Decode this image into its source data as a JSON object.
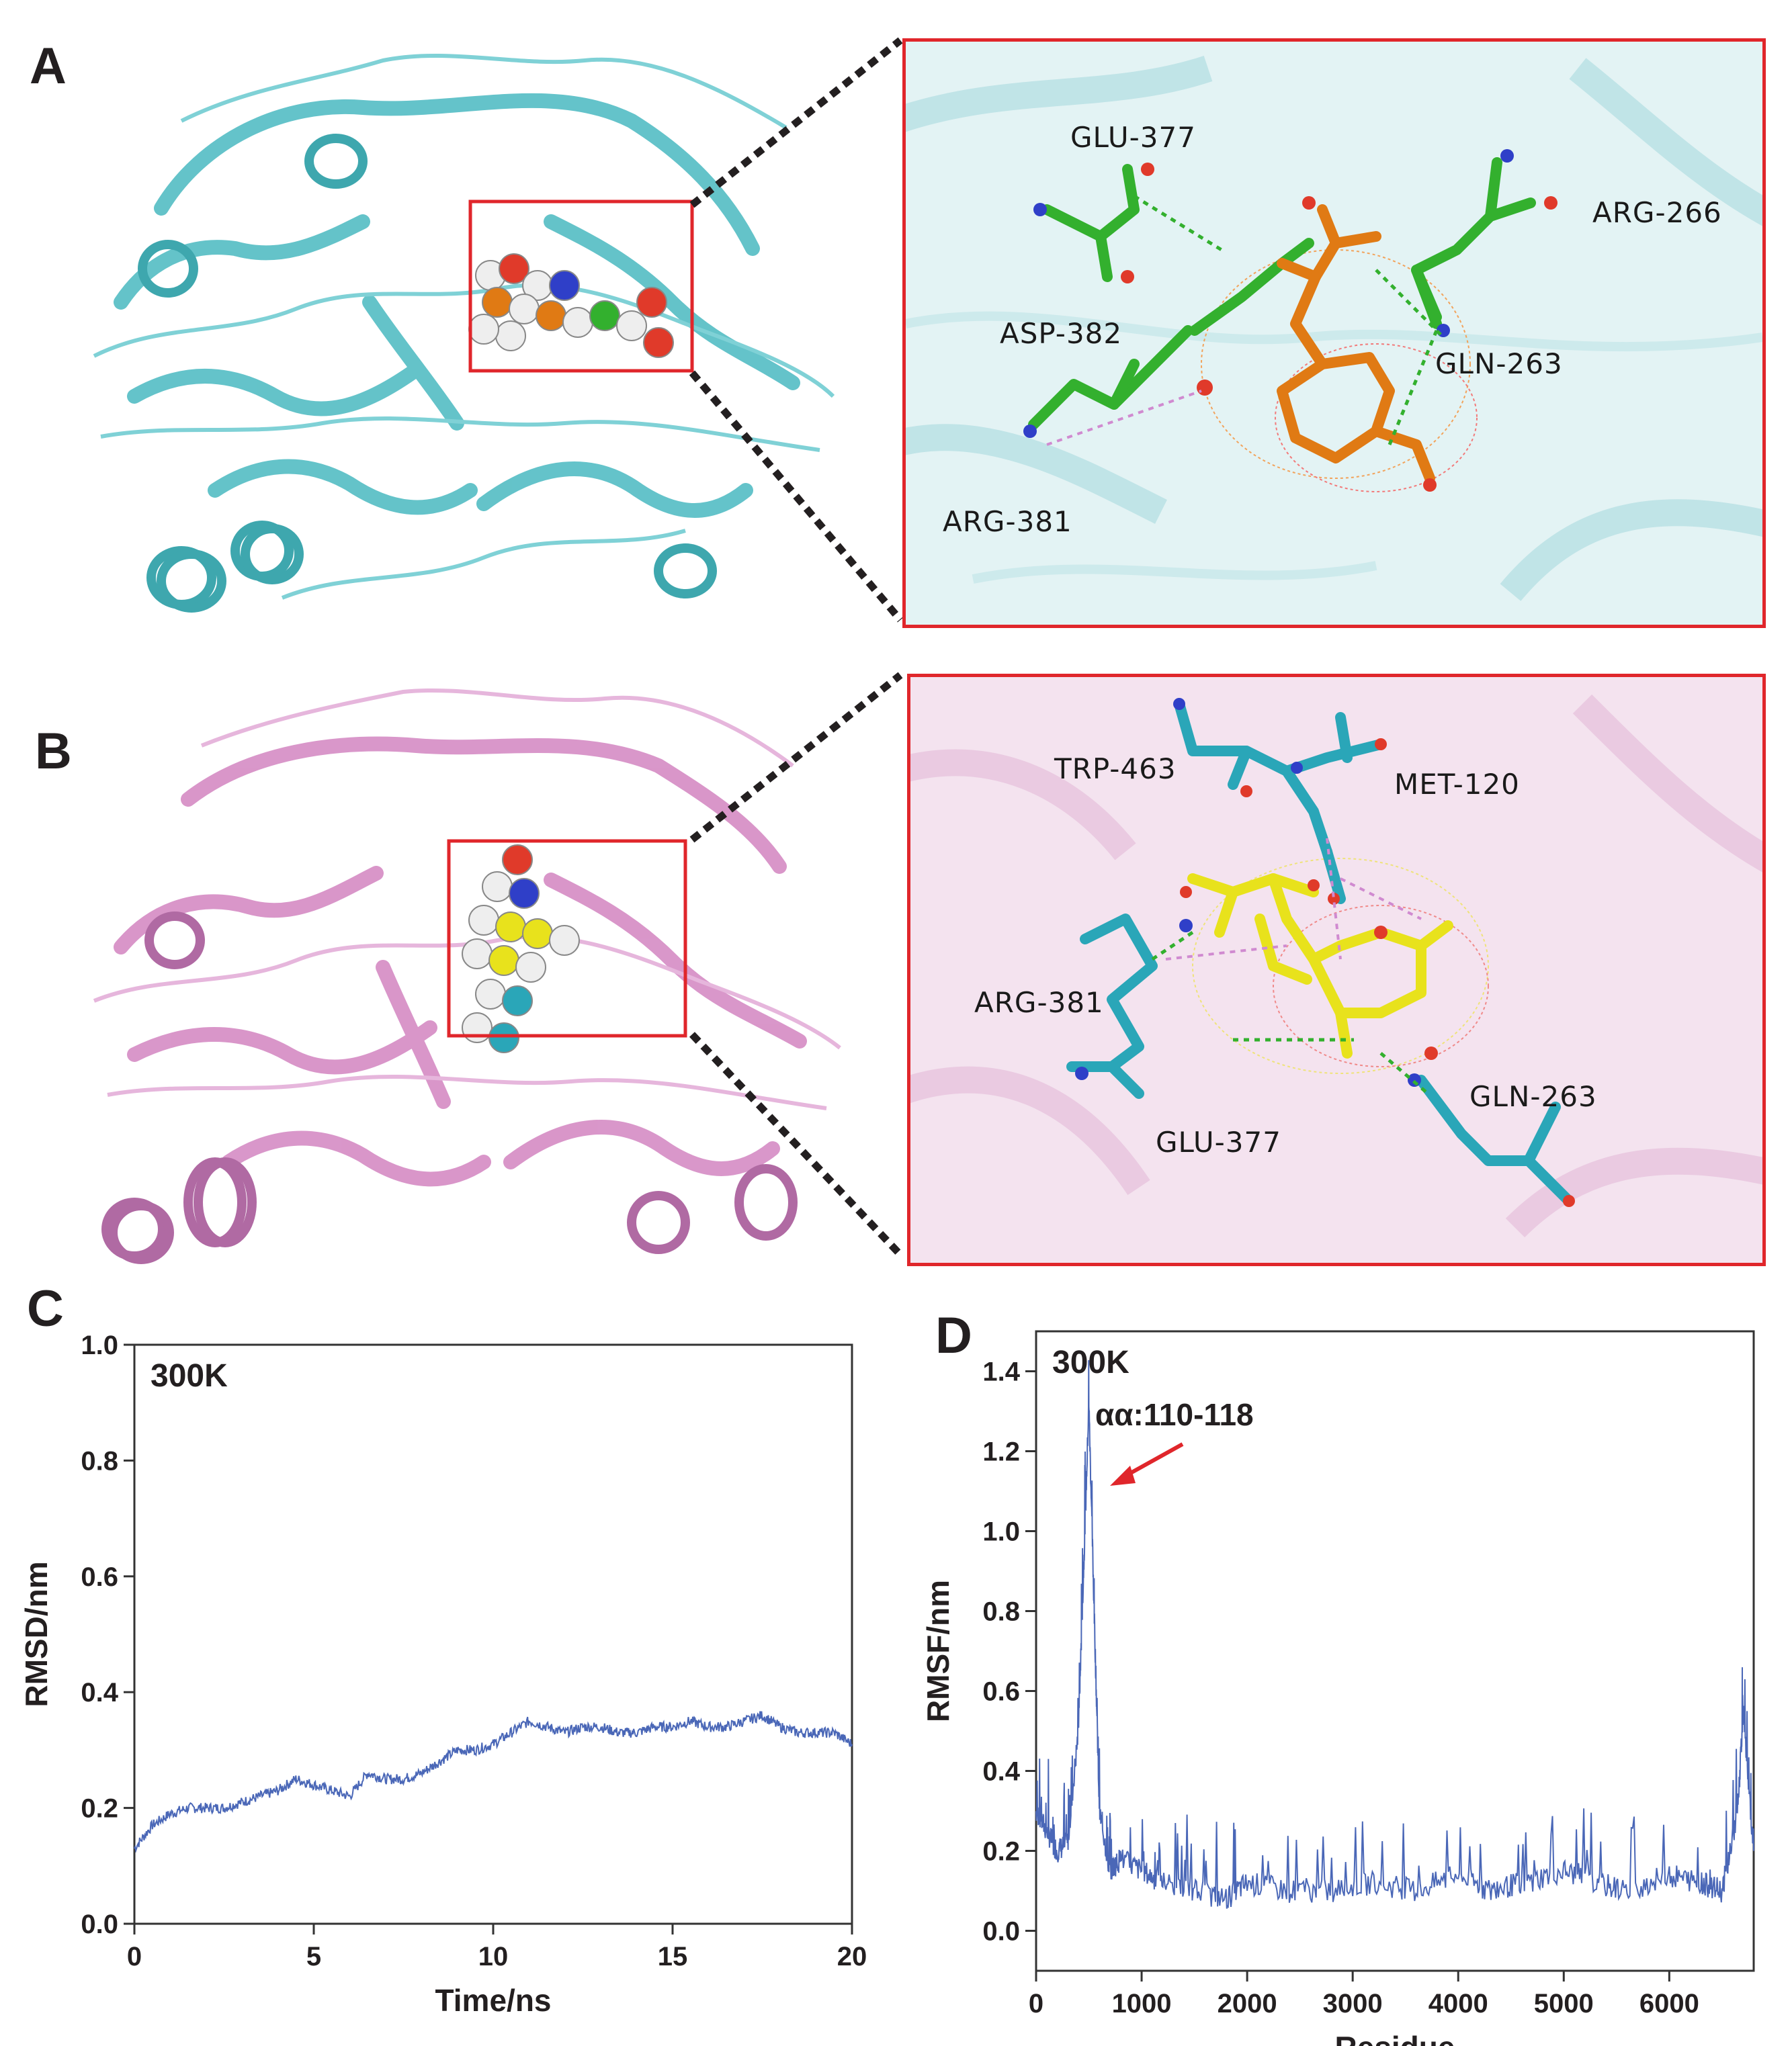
{
  "panels": {
    "A": {
      "letter": "A",
      "residues": [
        "GLU-377",
        "ARG-266",
        "ASP-382",
        "GLN-263",
        "ARG-381"
      ]
    },
    "B": {
      "letter": "B",
      "residues": [
        "TRP-463",
        "MET-120",
        "ARG-381",
        "GLN-263",
        "GLU-377"
      ]
    },
    "C": {
      "letter": "C"
    },
    "D": {
      "letter": "D"
    }
  },
  "colors": {
    "protein_A": "#5cc0c7",
    "protein_B": "#d791c7",
    "highlight_box": "#e0262b",
    "carbon_green": "#33b02e",
    "carbon_orange": "#e07a14",
    "carbon_cyan": "#2aa6b8",
    "carbon_yellow": "#e8e21c",
    "line_series": "#4a67b7"
  },
  "chart_data": [
    {
      "type": "line",
      "panel": "C",
      "annotation": "300K",
      "xlabel": "Time/ns",
      "ylabel": "RMSD/nm",
      "xlim": [
        0,
        20
      ],
      "ylim": [
        0.0,
        1.0
      ],
      "xticks": [
        "0",
        "5",
        "10",
        "15",
        "20"
      ],
      "yticks": [
        "0.0",
        "0.2",
        "0.4",
        "0.6",
        "0.8",
        "1.0"
      ],
      "series": [
        {
          "x": [
            0,
            0.5,
            1,
            1.5,
            2,
            2.5,
            3,
            3.5,
            4,
            4.5,
            5,
            5.5,
            6,
            6.5,
            7,
            7.5,
            8,
            8.5,
            9,
            9.5,
            10,
            10.5,
            11,
            11.5,
            12,
            12.5,
            13,
            13.5,
            14,
            14.5,
            15,
            15.5,
            16,
            16.5,
            17,
            17.5,
            18,
            18.5,
            19,
            19.5,
            20
          ],
          "y": [
            0.13,
            0.17,
            0.19,
            0.2,
            0.2,
            0.2,
            0.21,
            0.22,
            0.23,
            0.25,
            0.24,
            0.23,
            0.22,
            0.26,
            0.25,
            0.25,
            0.26,
            0.28,
            0.3,
            0.3,
            0.31,
            0.33,
            0.35,
            0.34,
            0.33,
            0.34,
            0.34,
            0.33,
            0.33,
            0.34,
            0.34,
            0.35,
            0.34,
            0.34,
            0.35,
            0.36,
            0.34,
            0.33,
            0.33,
            0.33,
            0.31
          ]
        }
      ]
    },
    {
      "type": "line",
      "panel": "D",
      "annotation": "300K",
      "callout": "αα:110-118",
      "xlabel": "Residue",
      "ylabel": "RMSF/nm",
      "xlim": [
        0,
        6800
      ],
      "ylim": [
        -0.1,
        1.5
      ],
      "xticks": [
        "0",
        "1000",
        "2000",
        "3000",
        "4000",
        "5000",
        "6000"
      ],
      "yticks": [
        "0.0",
        "0.2",
        "0.4",
        "0.6",
        "0.8",
        "1.0",
        "1.2",
        "1.4"
      ],
      "series": [
        {
          "x": [
            0,
            100,
            200,
            300,
            400,
            450,
            500,
            550,
            600,
            700,
            800,
            1000,
            1200,
            1500,
            1800,
            2000,
            2400,
            2800,
            3200,
            3600,
            4000,
            4300,
            4600,
            5000,
            5300,
            5600,
            6000,
            6300,
            6500,
            6650,
            6700,
            6800
          ],
          "y": [
            0.3,
            0.25,
            0.2,
            0.22,
            0.5,
            0.9,
            1.32,
            0.8,
            0.3,
            0.15,
            0.18,
            0.15,
            0.12,
            0.1,
            0.08,
            0.12,
            0.1,
            0.1,
            0.12,
            0.1,
            0.14,
            0.1,
            0.12,
            0.15,
            0.12,
            0.1,
            0.14,
            0.12,
            0.1,
            0.3,
            0.55,
            0.2
          ]
        }
      ]
    }
  ]
}
